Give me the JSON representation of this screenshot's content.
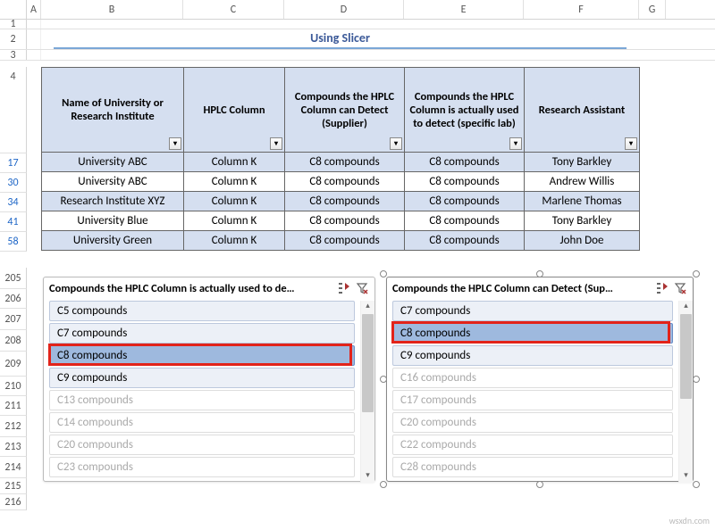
{
  "columns": {
    "letters": [
      "A",
      "B",
      "C",
      "D",
      "E",
      "F",
      "G"
    ]
  },
  "top_rows": [
    "1",
    "2",
    "3"
  ],
  "title": "Using Slicer",
  "title_style": {
    "color": "#3b5998",
    "rule_color": "#7ba7d7",
    "fontsize": 14,
    "fontweight": "bold"
  },
  "table": {
    "header_bg": "#d5dff0",
    "odd_bg": "#d5dff0",
    "even_bg": "#ffffff",
    "border_color": "#666666",
    "headers": [
      "Name of University or Research Institute",
      "HPLC Column",
      "Compounds the HPLC Column can Detect (Supplier)",
      "Compounds the HPLC Column is actually used to detect (specific lab)",
      "Research Assistant"
    ],
    "row_numbers": [
      "4",
      "17",
      "30",
      "34",
      "41",
      "58"
    ],
    "rows": [
      [
        "University ABC",
        "Column K",
        "C8 compounds",
        "C8 compounds",
        "Tony Barkley"
      ],
      [
        "University ABC",
        "Column K",
        "C8 compounds",
        "C8 compounds",
        "Andrew Willis"
      ],
      [
        "Research Institute XYZ",
        "Column K",
        "C8 compounds",
        "C8 compounds",
        "Marlene Thomas"
      ],
      [
        "University Blue",
        "Column K",
        "C8 compounds",
        "C8 compounds",
        "Tony Barkley"
      ],
      [
        "University Green",
        "Column K",
        "C8 compounds",
        "C8 compounds",
        "John Doe"
      ]
    ]
  },
  "body_rows": [
    "205",
    "206",
    "207",
    "208",
    "209",
    "210",
    "211",
    "212",
    "213",
    "214",
    "215",
    "216"
  ],
  "body_row_heights": [
    24,
    22,
    24,
    24,
    28,
    22,
    22,
    24,
    22,
    24,
    18,
    18
  ],
  "slicer_left": {
    "title": "Compounds the HPLC Column is actually used to de…",
    "items": [
      {
        "label": "C5 compounds",
        "dim": false,
        "selected": false
      },
      {
        "label": "C7 compounds",
        "dim": false,
        "selected": false
      },
      {
        "label": "C8 compounds",
        "dim": false,
        "selected": true
      },
      {
        "label": "C9 compounds",
        "dim": false,
        "selected": false
      },
      {
        "label": "C13 compounds",
        "dim": true,
        "selected": false
      },
      {
        "label": "C14 compounds",
        "dim": true,
        "selected": false
      },
      {
        "label": "C20 compounds",
        "dim": true,
        "selected": false
      },
      {
        "label": "C23 compounds",
        "dim": true,
        "selected": false
      }
    ],
    "thumb_height": 110
  },
  "slicer_right": {
    "title": "Compounds the HPLC Column can Detect (Sup…",
    "items": [
      {
        "label": "C7 compounds",
        "dim": false,
        "selected": false
      },
      {
        "label": "C8 compounds",
        "dim": false,
        "selected": true
      },
      {
        "label": "C9 compounds",
        "dim": false,
        "selected": false
      },
      {
        "label": "C16 compounds",
        "dim": true,
        "selected": false
      },
      {
        "label": "C17 compounds",
        "dim": true,
        "selected": false
      },
      {
        "label": "C20 compounds",
        "dim": true,
        "selected": false
      },
      {
        "label": "C22 compounds",
        "dim": true,
        "selected": false
      },
      {
        "label": "C28 compounds",
        "dim": true,
        "selected": false
      }
    ],
    "thumb_height": 95
  },
  "icons": {
    "multiselect": "⋮⋮",
    "clear_filter": "⌄"
  },
  "watermark": "wsxdn.com",
  "colors": {
    "item_bg": "#ecf0f7",
    "item_border": "#bcc8dd",
    "item_selected_bg": "#9eb9de",
    "item_selected_border": "#6a8ec7",
    "red": "#e2231a",
    "row_blue": "#1e66c7"
  }
}
